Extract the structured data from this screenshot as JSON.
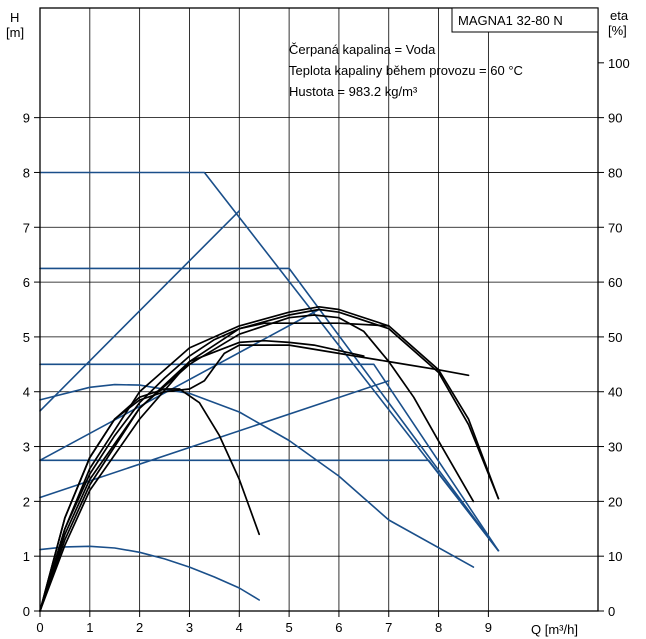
{
  "chart_data": {
    "type": "line",
    "title": "MAGNA1 32-80 N",
    "annotations": [
      "Čerpaná kapalina = Voda",
      "Teplota kapaliny během provozu = 60 °C",
      "Hustota = 983.2 kg/m³"
    ],
    "x_axis": {
      "label": "Q [m³/h]",
      "min": 0,
      "max": 11.2,
      "ticks": [
        0,
        1,
        2,
        3,
        4,
        5,
        6,
        7,
        8,
        9
      ]
    },
    "y_axis_left": {
      "label_line1": "H",
      "label_line2": "[m]",
      "min": 0,
      "max": 11,
      "ticks": [
        0,
        1,
        2,
        3,
        4,
        5,
        6,
        7,
        8,
        9
      ]
    },
    "y_axis_right": {
      "label_line1": "eta",
      "label_line2": "[%]",
      "min": 0,
      "max": 110,
      "ticks": [
        0,
        10,
        20,
        30,
        40,
        50,
        60,
        70,
        80,
        90,
        100
      ]
    },
    "grid": true,
    "colors": {
      "head": "#1a4f8a",
      "efficiency": "#000000",
      "frame": "#000000"
    },
    "series": [
      {
        "kind": "head",
        "x": [
          0,
          3.3,
          9.2
        ],
        "y": [
          8.0,
          8.0,
          1.1
        ]
      },
      {
        "kind": "head",
        "x": [
          0,
          5.0,
          9.2
        ],
        "y": [
          6.25,
          6.25,
          1.1
        ]
      },
      {
        "kind": "head",
        "x": [
          0,
          6.7,
          9.2
        ],
        "y": [
          4.5,
          4.5,
          1.1
        ]
      },
      {
        "kind": "head",
        "x": [
          0,
          7.8,
          9.2
        ],
        "y": [
          2.75,
          2.75,
          1.1
        ]
      },
      {
        "kind": "head",
        "x": [
          0,
          4.0
        ],
        "y": [
          3.65,
          7.3
        ]
      },
      {
        "kind": "head",
        "x": [
          0,
          5.6
        ],
        "y": [
          2.75,
          5.5
        ]
      },
      {
        "kind": "head",
        "x": [
          0,
          7.0
        ],
        "y": [
          2.07,
          4.2
        ]
      },
      {
        "kind": "head",
        "x": [
          0,
          0.5,
          1.0,
          1.5,
          2.0,
          2.5,
          3.0,
          3.5,
          4.0,
          4.4
        ],
        "y": [
          1.12,
          1.17,
          1.18,
          1.15,
          1.07,
          0.95,
          0.8,
          0.62,
          0.42,
          0.2
        ]
      },
      {
        "kind": "head",
        "x": [
          0,
          1.0,
          1.5,
          2.0,
          3.0,
          4.0,
          5.0,
          6.0,
          7.0,
          8.7
        ],
        "y": [
          3.85,
          4.08,
          4.13,
          4.12,
          3.97,
          3.63,
          3.11,
          2.46,
          1.66,
          0.8
        ]
      },
      {
        "kind": "efficiency",
        "x": [
          0,
          0.5,
          1.0,
          1.5,
          2.0,
          2.5,
          2.8,
          3.2,
          3.6,
          4.0,
          4.4
        ],
        "y": [
          0,
          17,
          28,
          35,
          39,
          40.5,
          40.5,
          38,
          32,
          24,
          14
        ]
      },
      {
        "kind": "efficiency",
        "x": [
          0,
          0.5,
          1.0,
          1.5,
          2.0,
          2.5,
          3.0,
          3.3,
          3.7,
          4.0,
          5.0,
          6.0,
          7.0,
          8.0,
          8.6
        ],
        "y": [
          0,
          17,
          28,
          35,
          38.5,
          40,
          40.5,
          42,
          47,
          48.5,
          48.5,
          47,
          45.5,
          44,
          43
        ]
      },
      {
        "kind": "efficiency",
        "x": [
          0,
          0.5,
          1.0,
          1.5,
          2.0,
          2.5,
          3.0,
          3.5,
          4.0,
          4.5,
          5.0,
          5.5,
          6.0,
          7.0
        ],
        "y": [
          0,
          15,
          25,
          32,
          38,
          42.5,
          46.5,
          49.5,
          51.5,
          52.5,
          52.5,
          52.5,
          52.5,
          52
        ]
      },
      {
        "kind": "efficiency",
        "x": [
          0,
          0.5,
          1.0,
          2.0,
          3.0,
          4.0,
          5.0,
          5.5,
          6.0,
          6.5,
          7.0,
          7.5,
          8.0,
          8.7
        ],
        "y": [
          0,
          14,
          24,
          37,
          45,
          50.5,
          53.5,
          54,
          53.5,
          51,
          45.5,
          39,
          31,
          20
        ]
      },
      {
        "kind": "efficiency",
        "x": [
          0,
          0.5,
          1.0,
          2.0,
          3.0,
          4.0,
          5.0,
          5.6,
          6.0,
          7.0,
          8.0,
          8.6,
          9.2
        ],
        "y": [
          0,
          15,
          26,
          40,
          48,
          52,
          54.5,
          55.5,
          55,
          52,
          44,
          35,
          20.5
        ]
      },
      {
        "kind": "efficiency",
        "x": [
          0,
          0.5,
          1.0,
          2.0,
          3.0,
          4.0,
          5.0,
          5.6,
          6.0,
          7.0,
          8.0,
          8.6,
          9.2
        ],
        "y": [
          0,
          12,
          22,
          35,
          45.5,
          51.5,
          54,
          55,
          54.5,
          51.5,
          43.5,
          34,
          20.5
        ]
      },
      {
        "kind": "efficiency",
        "x": [
          0,
          0.5,
          1.0,
          2.0,
          3.0,
          4.0,
          4.5,
          5.0,
          5.5,
          6.0,
          6.5
        ],
        "y": [
          0,
          13,
          23,
          37,
          45.5,
          49,
          49.3,
          49,
          48.5,
          47.5,
          46.5
        ]
      }
    ]
  }
}
